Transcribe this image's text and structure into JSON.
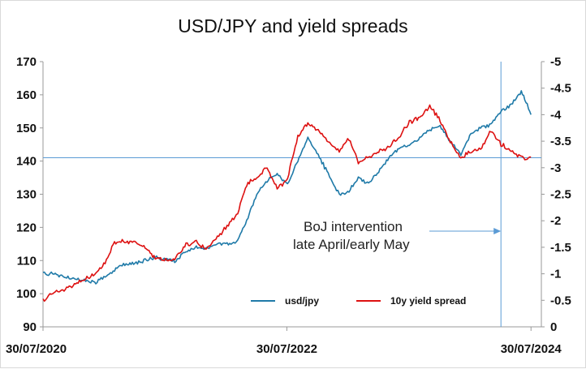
{
  "chart_data": {
    "type": "line",
    "title": "USD/JPY and yield spreads",
    "x_tick_labels": [
      "30/07/2020",
      "30/07/2022",
      "30/07/2024"
    ],
    "x_ticks": [
      "2020-07-30",
      "2022-07-30",
      "2024-07-30"
    ],
    "xlim": [
      "2020-07-30",
      "2024-08-30"
    ],
    "left_axis": {
      "ticks": [
        90,
        100,
        110,
        120,
        130,
        140,
        150,
        160,
        170
      ],
      "ylim": [
        90,
        170
      ]
    },
    "right_axis": {
      "ticks": [
        0,
        -0.5,
        -1,
        -1.5,
        -2,
        -2.5,
        -3,
        -3.5,
        -4,
        -4.5,
        -5
      ],
      "ylim": [
        0,
        -5
      ],
      "inverted": true
    },
    "grid": false,
    "legend_position": "bottom-right inside plot",
    "series": [
      {
        "name": "usd/jpy",
        "axis": "left",
        "color": "#1f7aa8",
        "points": [
          [
            "2020-07-30",
            106
          ],
          [
            "2020-09-01",
            106
          ],
          [
            "2020-10-01",
            105
          ],
          [
            "2020-11-01",
            104.5
          ],
          [
            "2020-12-01",
            104
          ],
          [
            "2021-01-04",
            103.5
          ],
          [
            "2021-02-01",
            105
          ],
          [
            "2021-03-01",
            107
          ],
          [
            "2021-04-01",
            109
          ],
          [
            "2021-05-01",
            109
          ],
          [
            "2021-06-01",
            110
          ],
          [
            "2021-07-01",
            111
          ],
          [
            "2021-08-01",
            110
          ],
          [
            "2021-09-01",
            110
          ],
          [
            "2021-10-01",
            113
          ],
          [
            "2021-11-01",
            114
          ],
          [
            "2021-12-01",
            113.5
          ],
          [
            "2022-01-03",
            115
          ],
          [
            "2022-02-01",
            115
          ],
          [
            "2022-03-01",
            115.5
          ],
          [
            "2022-04-01",
            122
          ],
          [
            "2022-05-01",
            130
          ],
          [
            "2022-06-01",
            134
          ],
          [
            "2022-07-01",
            136
          ],
          [
            "2022-08-01",
            133
          ],
          [
            "2022-09-01",
            140
          ],
          [
            "2022-10-01",
            147
          ],
          [
            "2022-11-01",
            142
          ],
          [
            "2022-12-01",
            136
          ],
          [
            "2023-01-03",
            130
          ],
          [
            "2023-02-01",
            131
          ],
          [
            "2023-03-01",
            135
          ],
          [
            "2023-04-01",
            133
          ],
          [
            "2023-05-01",
            137
          ],
          [
            "2023-06-01",
            141
          ],
          [
            "2023-07-01",
            144
          ],
          [
            "2023-08-01",
            145
          ],
          [
            "2023-09-01",
            147
          ],
          [
            "2023-10-01",
            149.5
          ],
          [
            "2023-11-01",
            150.5
          ],
          [
            "2023-12-01",
            146
          ],
          [
            "2024-01-02",
            142
          ],
          [
            "2024-02-01",
            148
          ],
          [
            "2024-03-01",
            150
          ],
          [
            "2024-04-01",
            151
          ],
          [
            "2024-05-01",
            155
          ],
          [
            "2024-06-01",
            157
          ],
          [
            "2024-07-01",
            161
          ],
          [
            "2024-07-15",
            158
          ],
          [
            "2024-07-30",
            154
          ]
        ]
      },
      {
        "name": "10y yield spread",
        "axis": "right",
        "color": "#dd1111",
        "points": [
          [
            "2020-07-30",
            -0.5
          ],
          [
            "2020-09-01",
            -0.65
          ],
          [
            "2020-10-01",
            -0.7
          ],
          [
            "2020-11-01",
            -0.8
          ],
          [
            "2020-12-01",
            -0.9
          ],
          [
            "2021-01-04",
            -1.0
          ],
          [
            "2021-02-01",
            -1.2
          ],
          [
            "2021-03-01",
            -1.6
          ],
          [
            "2021-04-01",
            -1.6
          ],
          [
            "2021-05-01",
            -1.6
          ],
          [
            "2021-06-01",
            -1.5
          ],
          [
            "2021-07-01",
            -1.3
          ],
          [
            "2021-08-01",
            -1.25
          ],
          [
            "2021-09-01",
            -1.3
          ],
          [
            "2021-10-01",
            -1.55
          ],
          [
            "2021-11-01",
            -1.6
          ],
          [
            "2021-12-01",
            -1.45
          ],
          [
            "2022-01-03",
            -1.7
          ],
          [
            "2022-02-01",
            -1.9
          ],
          [
            "2022-03-01",
            -2.1
          ],
          [
            "2022-04-01",
            -2.7
          ],
          [
            "2022-05-01",
            -2.8
          ],
          [
            "2022-06-01",
            -3.0
          ],
          [
            "2022-07-01",
            -2.6
          ],
          [
            "2022-08-01",
            -2.8
          ],
          [
            "2022-09-01",
            -3.6
          ],
          [
            "2022-10-01",
            -3.85
          ],
          [
            "2022-11-01",
            -3.7
          ],
          [
            "2022-12-01",
            -3.5
          ],
          [
            "2023-01-03",
            -3.3
          ],
          [
            "2023-02-01",
            -3.55
          ],
          [
            "2023-03-01",
            -3.1
          ],
          [
            "2023-04-01",
            -3.2
          ],
          [
            "2023-05-01",
            -3.3
          ],
          [
            "2023-06-01",
            -3.4
          ],
          [
            "2023-07-01",
            -3.6
          ],
          [
            "2023-08-01",
            -3.85
          ],
          [
            "2023-09-01",
            -3.95
          ],
          [
            "2023-10-01",
            -4.15
          ],
          [
            "2023-11-01",
            -3.9
          ],
          [
            "2023-12-01",
            -3.5
          ],
          [
            "2024-01-02",
            -3.2
          ],
          [
            "2024-02-01",
            -3.3
          ],
          [
            "2024-03-01",
            -3.35
          ],
          [
            "2024-04-01",
            -3.7
          ],
          [
            "2024-05-01",
            -3.45
          ],
          [
            "2024-06-01",
            -3.3
          ],
          [
            "2024-07-01",
            -3.2
          ],
          [
            "2024-07-15",
            -3.15
          ],
          [
            "2024-07-30",
            -3.2
          ]
        ]
      }
    ],
    "reference_lines": [
      {
        "orientation": "horizontal",
        "axis": "left",
        "value": 141,
        "color": "#5b9bd5"
      },
      {
        "orientation": "vertical",
        "date": "2024-05-01",
        "color": "#5b9bd5"
      }
    ],
    "annotations": [
      {
        "lines": [
          "BoJ intervention",
          "late April/early May"
        ],
        "arrow_to": "vertical reference line"
      }
    ]
  }
}
